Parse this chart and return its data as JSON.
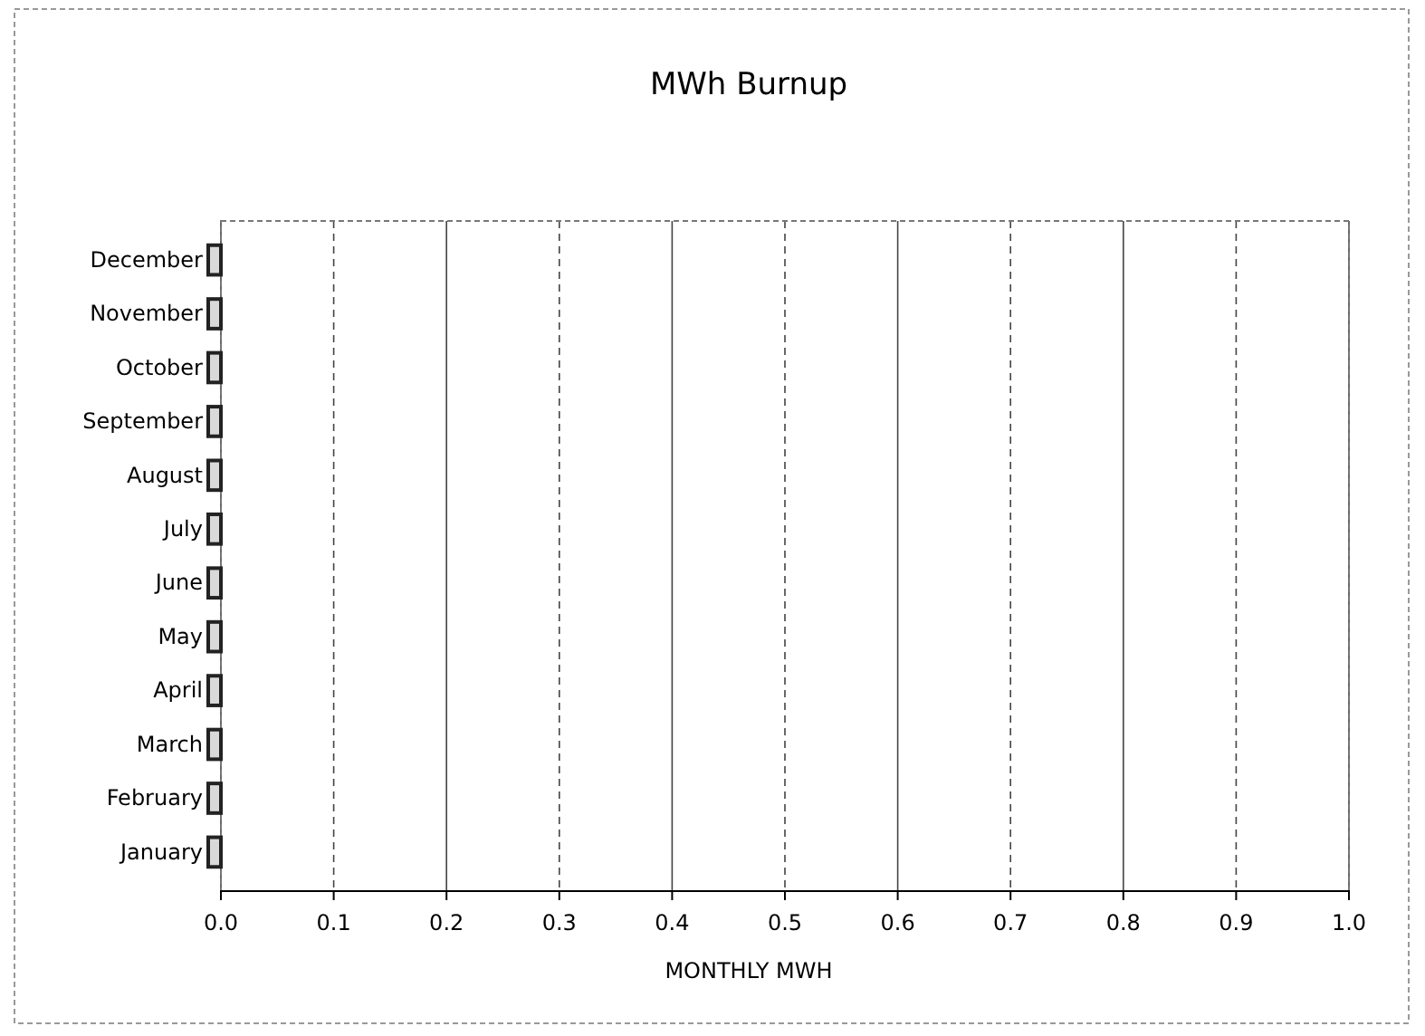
{
  "chart_data": {
    "type": "bar",
    "orientation": "horizontal",
    "title": "MWh Burnup",
    "xlabel": "MONTHLY MWH",
    "categories": [
      "December",
      "November",
      "October",
      "September",
      "August",
      "July",
      "June",
      "May",
      "April",
      "March",
      "February",
      "January"
    ],
    "values": [
      0,
      0,
      0,
      0,
      0,
      0,
      0,
      0,
      0,
      0,
      0,
      0
    ],
    "color": "#d9d9d9",
    "xlim": [
      0,
      1
    ],
    "xticks": [
      {
        "value": 0,
        "label": "0.0"
      },
      {
        "value": 0.1,
        "label": "0.1"
      },
      {
        "value": 0.2,
        "label": "0.2"
      },
      {
        "value": 0.3,
        "label": "0.3"
      },
      {
        "value": 0.4,
        "label": "0.4"
      },
      {
        "value": 0.5,
        "label": "0.5"
      },
      {
        "value": 0.6,
        "label": "0.6"
      },
      {
        "value": 0.7,
        "label": "0.7"
      },
      {
        "value": 0.8,
        "label": "0.8"
      },
      {
        "value": 0.9,
        "label": "0.9"
      },
      {
        "value": 1,
        "label": "1.0"
      }
    ],
    "grid": "x"
  }
}
